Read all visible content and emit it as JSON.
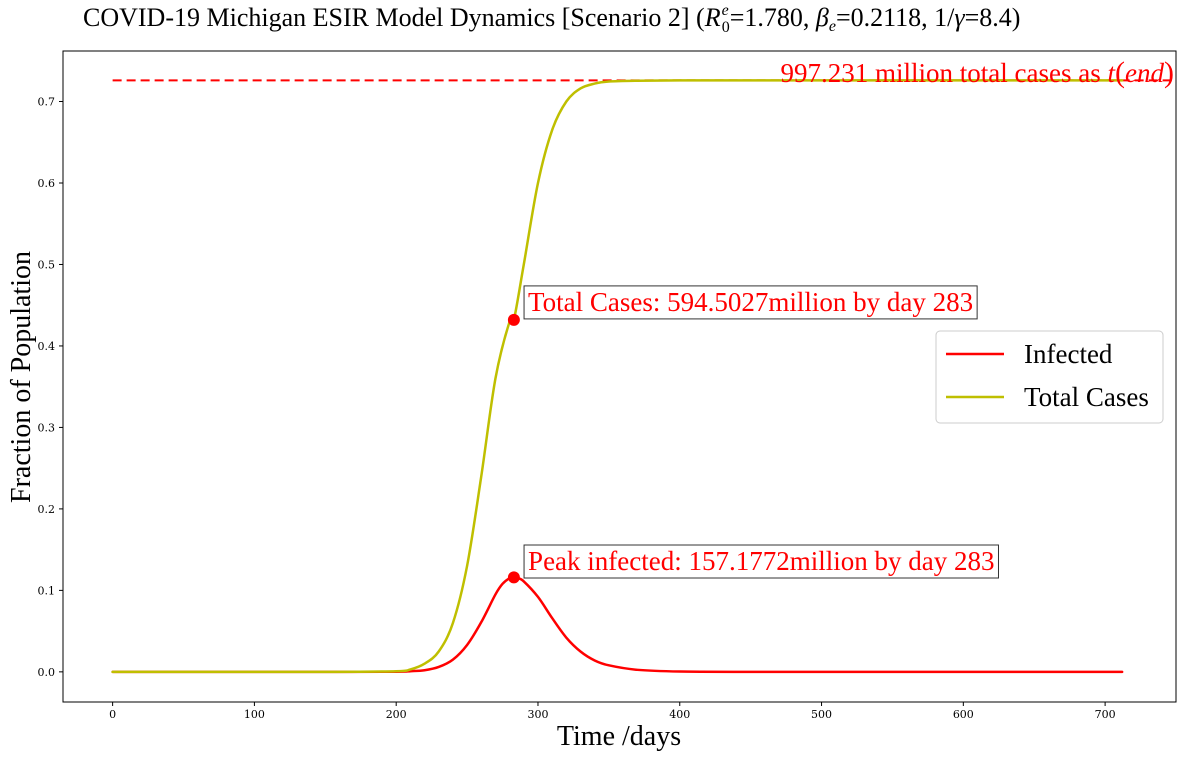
{
  "chart_data": {
    "type": "line",
    "title": "COVID-19 Michigan ESIR Model Dynamics [Scenario 2] (",
    "title_r_sym": "R",
    "title_r_sup": "e",
    "title_r_sub": "0",
    "title_r_val": "=1.780, ",
    "title_beta_sym": "β",
    "title_beta_sub": "e",
    "title_beta_val": "=0.2118, 1/",
    "title_gamma_sym": "γ",
    "title_gamma_val": "=8.4)",
    "xlabel": "Time /days",
    "ylabel": "Fraction of Population",
    "xlim": [
      -35,
      750
    ],
    "ylim": [
      -0.037,
      0.762
    ],
    "xticks": [
      0,
      100,
      200,
      300,
      400,
      500,
      600,
      700
    ],
    "xtick_labels": [
      "0",
      "100",
      "200",
      "300",
      "400",
      "500",
      "600",
      "700"
    ],
    "yticks": [
      0.0,
      0.1,
      0.2,
      0.3,
      0.4,
      0.5,
      0.6,
      0.7
    ],
    "ytick_labels": [
      "0.0",
      "0.1",
      "0.2",
      "0.3",
      "0.4",
      "0.5",
      "0.6",
      "0.7"
    ],
    "grid": false,
    "legend_position": "center-right",
    "series": [
      {
        "name": "Infected",
        "color": "#ff0000",
        "x": [
          0,
          50,
          100,
          150,
          200,
          210,
          220,
          230,
          240,
          250,
          260,
          270,
          275,
          280,
          283,
          286,
          290,
          300,
          310,
          320,
          330,
          340,
          350,
          370,
          400,
          450,
          500,
          600,
          712
        ],
        "y": [
          0.0,
          0.0,
          0.0,
          0.0,
          0.0002,
          0.0008,
          0.002,
          0.006,
          0.015,
          0.033,
          0.061,
          0.095,
          0.108,
          0.115,
          0.116,
          0.115,
          0.111,
          0.092,
          0.066,
          0.042,
          0.025,
          0.014,
          0.008,
          0.0025,
          0.0004,
          0.0,
          0.0,
          0.0,
          0.0
        ]
      },
      {
        "name": "Total Cases",
        "color": "#bfbf00",
        "x": [
          0,
          50,
          100,
          150,
          200,
          210,
          220,
          230,
          240,
          250,
          260,
          270,
          280,
          283,
          290,
          300,
          310,
          320,
          330,
          340,
          350,
          370,
          400,
          450,
          500,
          600,
          712
        ],
        "y": [
          0.0,
          0.0,
          0.0,
          0.0,
          0.0008,
          0.003,
          0.01,
          0.025,
          0.06,
          0.13,
          0.24,
          0.36,
          0.43,
          0.432,
          0.5,
          0.6,
          0.665,
          0.7,
          0.716,
          0.722,
          0.7245,
          0.7255,
          0.726,
          0.726,
          0.726,
          0.726,
          0.726
        ]
      }
    ],
    "reference_line": {
      "y": 0.726,
      "x_start": 0,
      "x_end": 750,
      "color": "#ff0000",
      "style": "dashed"
    },
    "markers": [
      {
        "x": 283,
        "y": 0.432,
        "color": "#ff0000"
      },
      {
        "x": 283,
        "y": 0.116,
        "color": "#ff0000"
      }
    ],
    "annotations": [
      {
        "text": "Total Cases: 594.5027million by day 283",
        "x": 293,
        "y": 0.443,
        "color": "#ff0000",
        "boxed": true
      },
      {
        "text": "Peak infected: 157.1772million by day 283",
        "x": 293,
        "y": 0.125,
        "color": "#ff0000",
        "boxed": true
      }
    ],
    "end_annotation": {
      "text_main": "997.231 million total cases as ",
      "text_t": "t",
      "text_lparen": "(",
      "text_end": "end",
      "text_rparen": ")",
      "color": "#ff0000"
    }
  }
}
